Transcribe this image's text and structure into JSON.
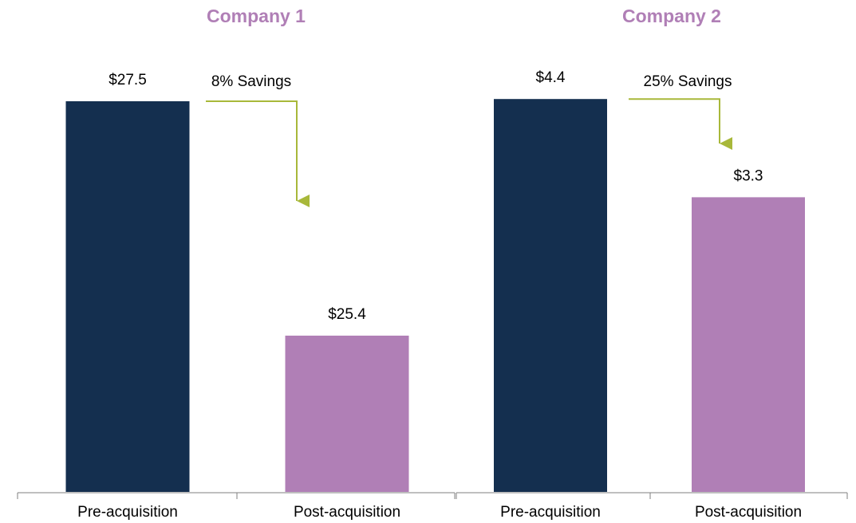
{
  "chart_data": [
    {
      "type": "bar",
      "title": "Company 1",
      "categories": [
        "Pre-acquisition",
        "Post-acquisition"
      ],
      "values": [
        27.5,
        25.4
      ],
      "value_labels": [
        "$27.5",
        "$25.4"
      ],
      "colors": [
        "#142f4f",
        "#b07fb6"
      ],
      "ylim": [
        24,
        28
      ],
      "annotation": "8% Savings"
    },
    {
      "type": "bar",
      "title": "Company 2",
      "categories": [
        "Pre-acquisition",
        "Post-acquisition"
      ],
      "values": [
        4.4,
        3.3
      ],
      "value_labels": [
        "$4.4",
        "$3.3"
      ],
      "colors": [
        "#142f4f",
        "#b07fb6"
      ],
      "ylim": [
        0,
        5
      ],
      "annotation": "25% Savings"
    }
  ]
}
